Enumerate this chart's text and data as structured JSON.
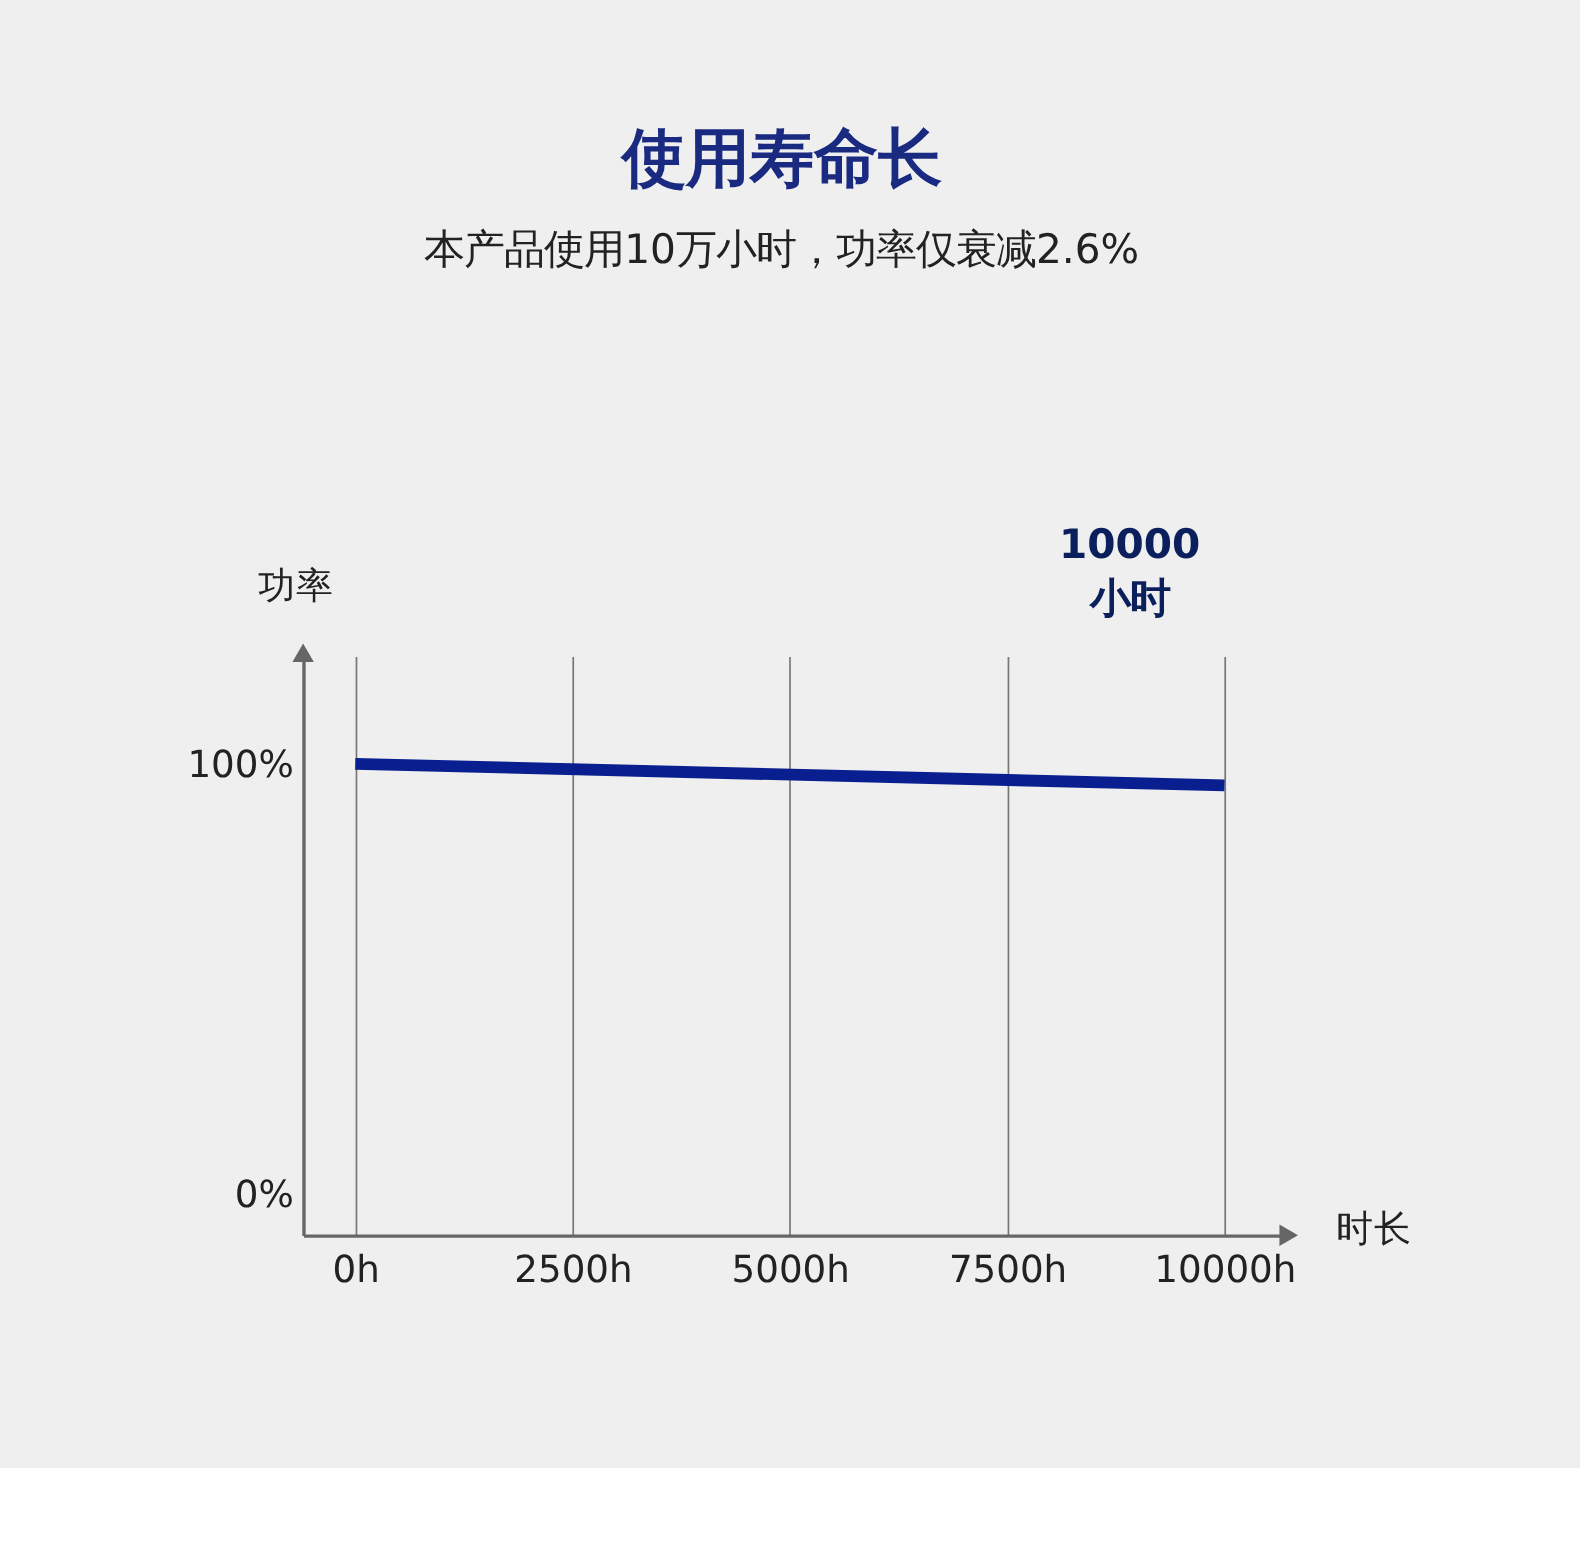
{
  "chart_data": {
    "type": "line",
    "title": "使用寿命长",
    "subtitle": "本产品使用10万小时，功率仅衰减2.6%",
    "xlabel": "时长",
    "ylabel": "功率",
    "x": [
      0,
      10000
    ],
    "series": [
      {
        "color": "#0a1f8f",
        "values": [
          100,
          95
        ]
      }
    ],
    "xlim": [
      -600,
      10700
    ],
    "ylim": [
      -9.4,
      125
    ],
    "xticks": [
      {
        "value": 0,
        "label": "0h"
      },
      {
        "value": 2500,
        "label": "2500h"
      },
      {
        "value": 5000,
        "label": "5000h"
      },
      {
        "value": 7500,
        "label": "7500h"
      },
      {
        "value": 10000,
        "label": "10000h"
      }
    ],
    "yticks": [
      {
        "value": 0,
        "label": "0%"
      },
      {
        "value": 100,
        "label": "100%"
      }
    ],
    "grid": "x",
    "marker": "none",
    "line_style": "solid",
    "annotations": [
      "10000\n小时"
    ]
  }
}
